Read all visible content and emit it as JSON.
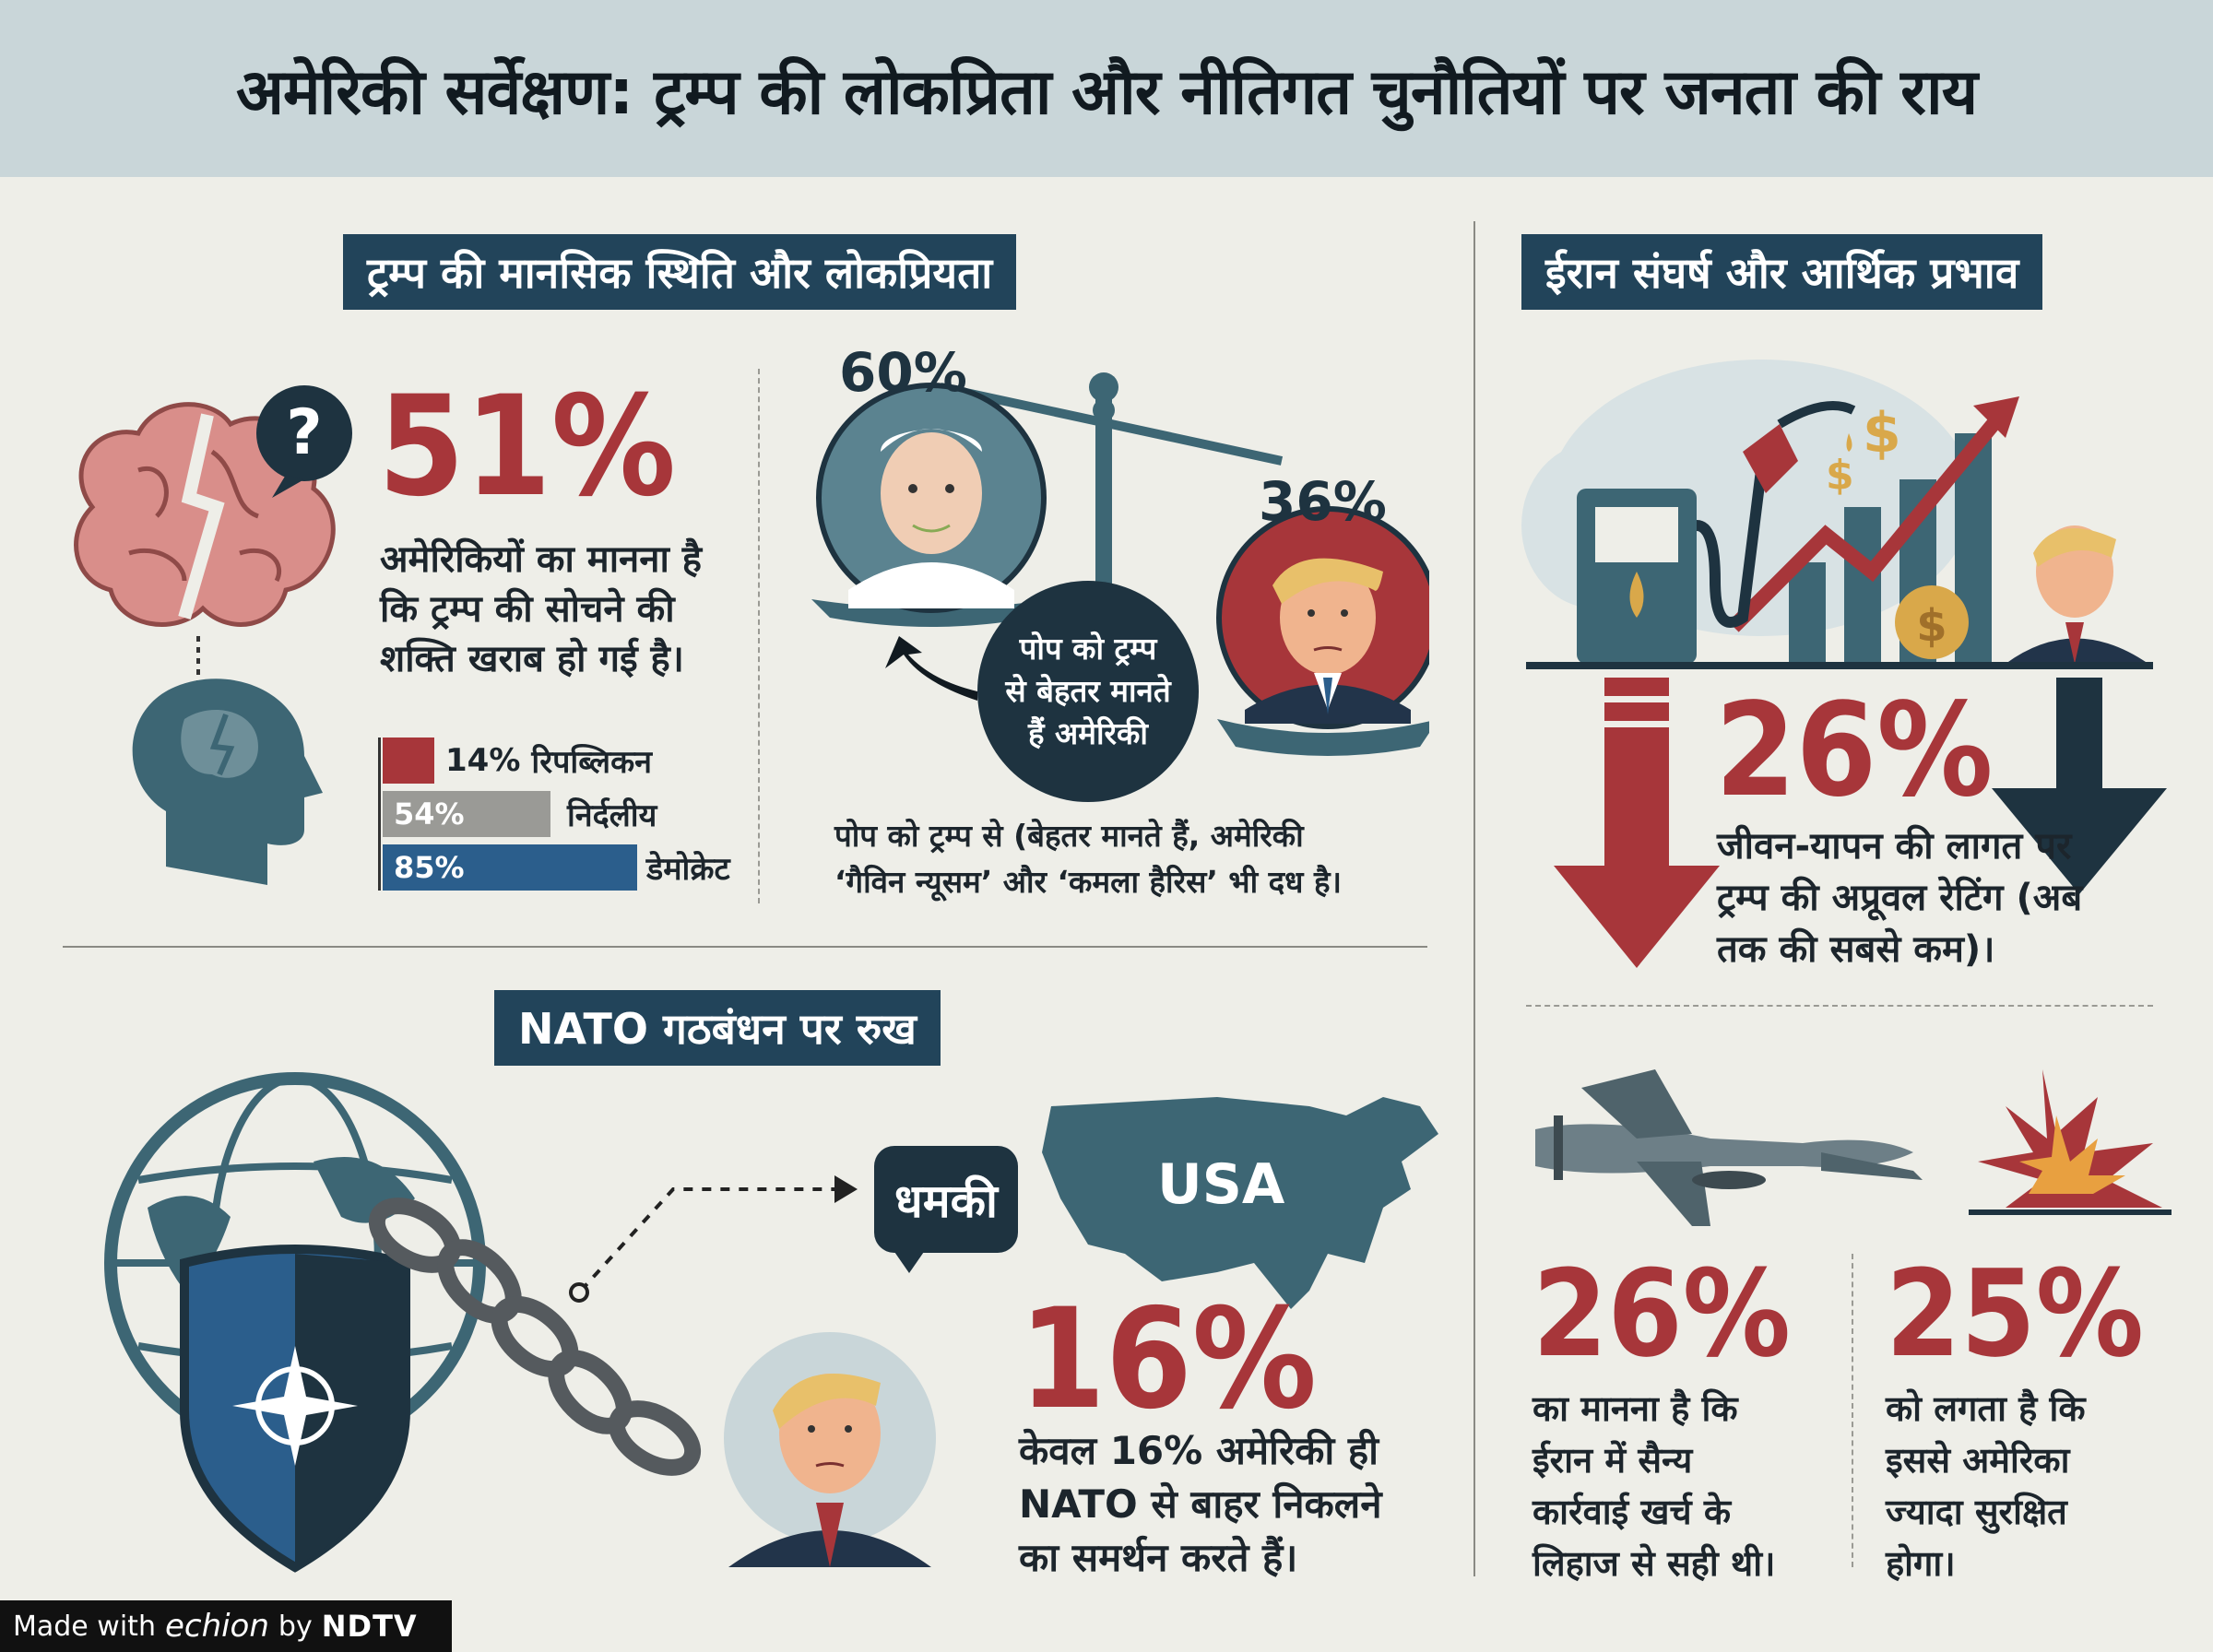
{
  "title": "अमेरिकी सर्वेक्षण: ट्रम्प की लोकप्रिता और नीतिगत चुनौतियों पर जनता की राय",
  "sections": {
    "mental": {
      "label": "ट्रम्प की मानसिक स्थिति और लोकप्रियता",
      "stat": "51%",
      "text_lines": [
        "अमेरिकियों का मानना है",
        "कि ट्रम्प की सोचने की",
        "शक्ति खराब हो गई है।"
      ],
      "bars": [
        {
          "value": "14%",
          "label": "रिपब्लिकन",
          "pct": 14,
          "color": "#a7363a"
        },
        {
          "value": "54%",
          "label": "निर्दलीय",
          "pct": 54,
          "color": "#9a9a96"
        },
        {
          "value": "85%",
          "label": "डेमोक्रेट",
          "pct": 85,
          "color": "#2b5e8c"
        }
      ]
    },
    "pope": {
      "left_pct": "60%",
      "right_pct": "36%",
      "bubble_lines": [
        "पोप को ट्रम्प",
        "से बेहतर मानते",
        "हैं अमेरिकी"
      ],
      "note_lines": [
        "पोप को ट्रम्प से (बेहतर मानते हैं, अमेरिकी",
        "‘गैविन न्यूसम’ और ‘कमला हैरिस’ भी दध है।"
      ]
    },
    "iran": {
      "label": "ईरान संघर्ष और आर्थिक प्रभाव",
      "stat1": "26%",
      "text1_lines": [
        "जीवन-यापन की लागत पर",
        "ट्रम्प की अप्रूवल रेटिंग (अब",
        "तक की सबसे कम)।"
      ],
      "stat2": "26%",
      "text2_lines": [
        "का मानना है कि",
        "ईरान में सैन्य",
        "कार्रवाई खर्च के",
        "लिहाज से सही थी।"
      ],
      "stat3": "25%",
      "text3_lines": [
        "को लगता है कि",
        "इससे अमेरिका",
        "ज्यादा सुरक्षित",
        "होगा।"
      ]
    },
    "nato": {
      "label": "NATO गठबंधन पर रुख",
      "threat": "धमकी",
      "usa": "USA",
      "stat": "16%",
      "text_lines": [
        "केवल 16% अमेरिकी ही",
        "NATO से बाहर निकलने",
        "का समर्थन करते हैं।"
      ]
    }
  },
  "footer": {
    "made_with": "Made with",
    "brand": "echion",
    "by": "by",
    "ndtv": "NDTV"
  },
  "icons": [
    "brain-icon",
    "question-icon",
    "head-icon",
    "scale-icon",
    "pope-portrait-icon",
    "trump-portrait-icon",
    "fuel-pump-icon",
    "dollar-icon",
    "chart-arrow-icon",
    "down-arrow-icon",
    "drone-icon",
    "explosion-icon",
    "globe-icon",
    "shield-icon",
    "chain-icon",
    "usa-map-icon"
  ]
}
